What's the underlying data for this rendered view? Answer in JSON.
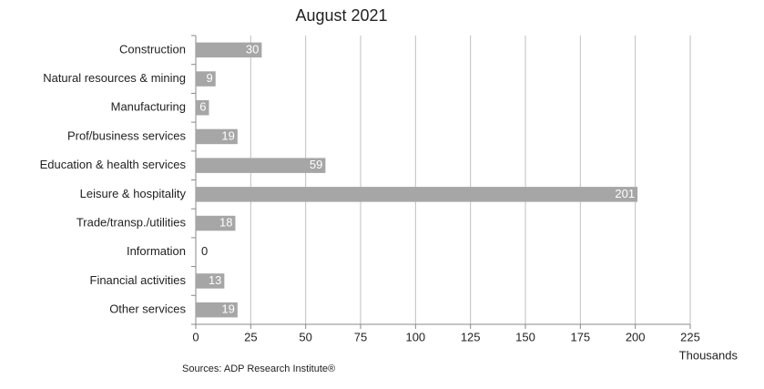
{
  "chart_data": {
    "type": "bar",
    "orientation": "horizontal",
    "title": "August 2021",
    "categories": [
      "Construction",
      "Natural resources & mining",
      "Manufacturing",
      "Prof/business services",
      "Education & health services",
      "Leisure & hospitality",
      "Trade/transp./utilities",
      "Information",
      "Financial activities",
      "Other services"
    ],
    "values": [
      30,
      9,
      6,
      19,
      59,
      201,
      18,
      0,
      13,
      19
    ],
    "color": "#a6a6a6",
    "xlim": [
      0,
      225
    ],
    "xticks": [
      0,
      25,
      50,
      75,
      100,
      125,
      150,
      175,
      200,
      225
    ],
    "x_label": "Thousands",
    "source": "Sources: ADP Research Institute®",
    "grid": true
  }
}
